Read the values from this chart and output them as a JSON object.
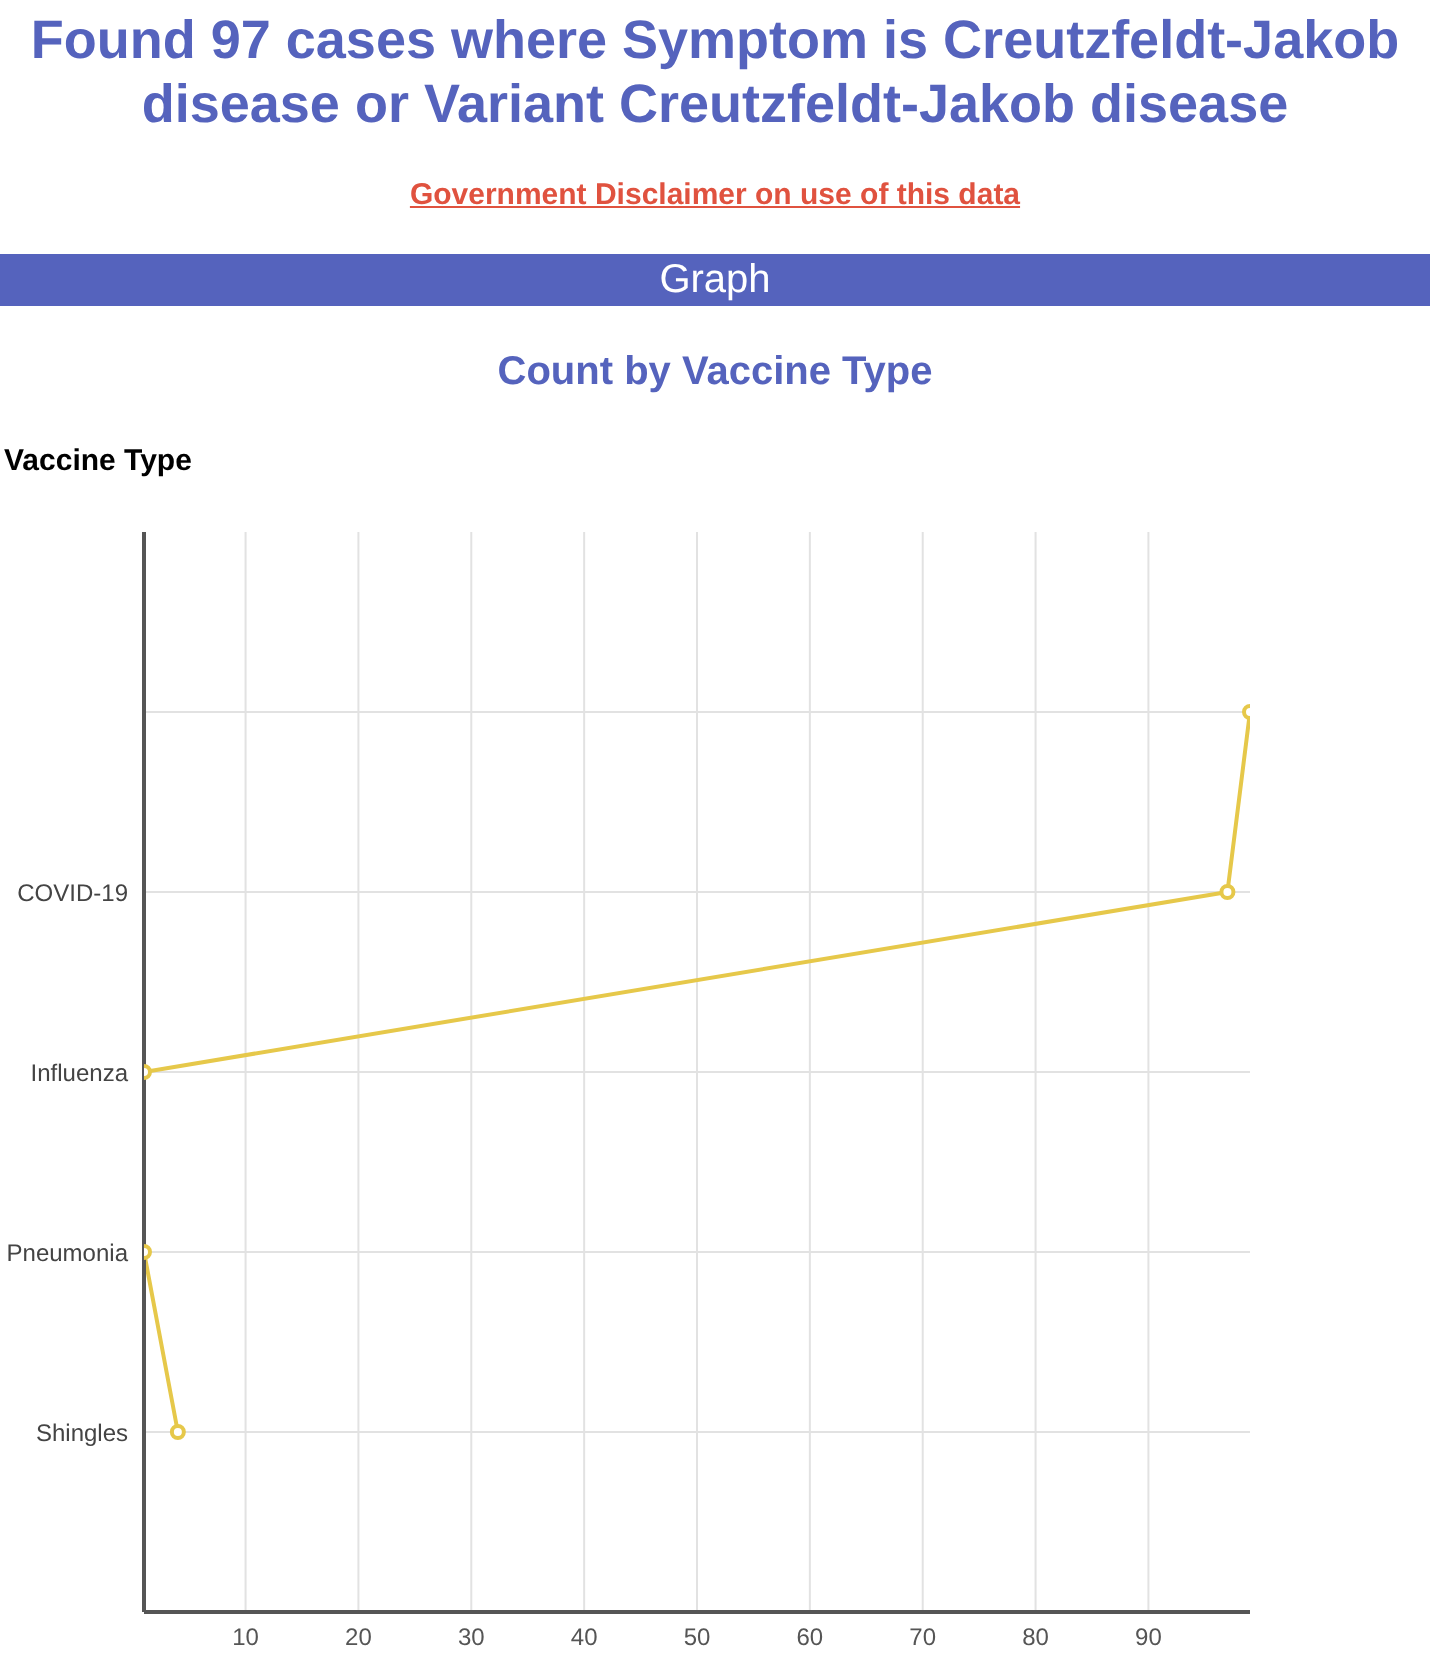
{
  "chart_data": {
    "type": "line",
    "title": "Found 97 cases where Symptom is Creutzfeldt-Jakob disease or Variant Creutzfeldt-Jakob disease",
    "subtitle": "Count by Vaccine Type",
    "annotations": [
      "Government Disclaimer on use of this data",
      "Graph"
    ],
    "ylabel": "Vaccine Type",
    "orientation": "horizontal",
    "categories": [
      null,
      "COVID-19",
      "Influenza",
      "Pneumonia",
      "Shingles"
    ],
    "series": [
      {
        "color": "#e6c84a",
        "values": [
          99,
          97,
          1,
          1,
          4
        ]
      }
    ],
    "xlim": [
      1,
      99
    ],
    "xticks": [
      10,
      20,
      30,
      40,
      50,
      60,
      70,
      80,
      90
    ],
    "grid": true,
    "marker": "circle"
  }
}
